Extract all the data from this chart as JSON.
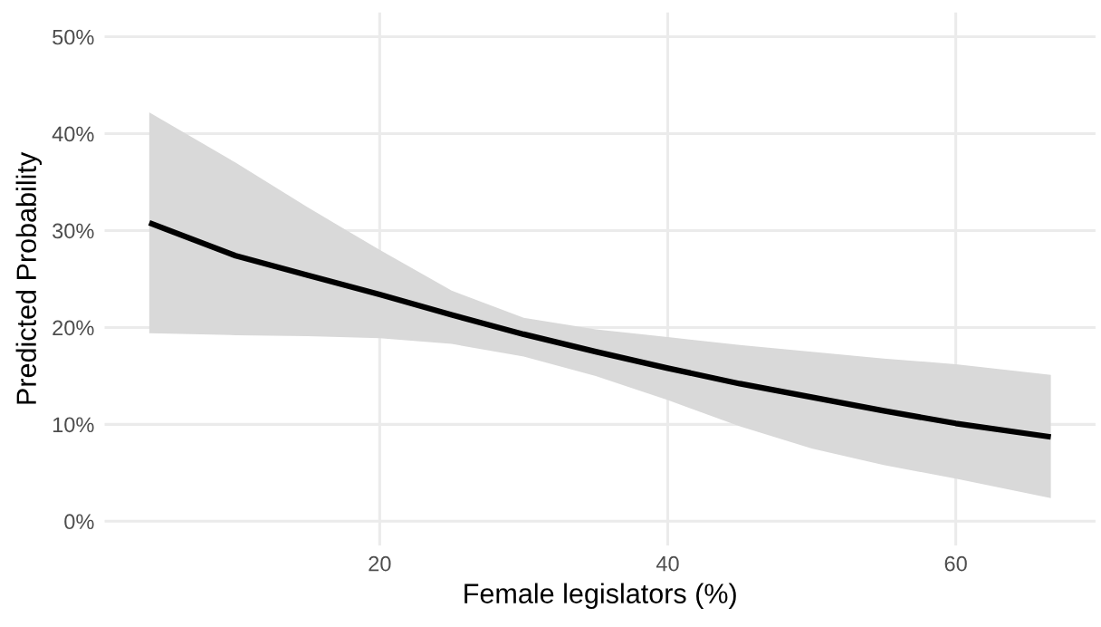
{
  "chart_data": {
    "type": "line",
    "xlabel": "Female legislators (%)",
    "ylabel": "Predicted Probability",
    "x": [
      4,
      10,
      15,
      20,
      25,
      30,
      35,
      40,
      45,
      50,
      55,
      60,
      66.6
    ],
    "series": [
      {
        "color": "#000000",
        "values": [
          30.8,
          27.4,
          25.4,
          23.4,
          21.3,
          19.3,
          17.5,
          15.8,
          14.2,
          12.8,
          11.4,
          10.1,
          8.7
        ],
        "upper": [
          42.2,
          37.0,
          32.4,
          28.0,
          23.8,
          21.0,
          19.8,
          19.0,
          18.2,
          17.5,
          16.8,
          16.2,
          15.1
        ],
        "lower": [
          19.4,
          19.2,
          19.1,
          18.9,
          18.3,
          17.0,
          15.0,
          12.5,
          9.8,
          7.5,
          5.8,
          4.4,
          2.4
        ]
      }
    ],
    "xlim": [
      0.9,
      69.7
    ],
    "xticks": [
      20,
      40,
      60
    ],
    "ylim": [
      -2.5,
      52.5
    ],
    "yticks": [
      {
        "value": 0,
        "label": "0%"
      },
      {
        "value": 10,
        "label": "10%"
      },
      {
        "value": 20,
        "label": "20%"
      },
      {
        "value": 30,
        "label": "30%"
      },
      {
        "value": 40,
        "label": "40%"
      },
      {
        "value": 50,
        "label": "50%"
      }
    ],
    "grid": true,
    "marker": "none",
    "line_style": "solid"
  }
}
